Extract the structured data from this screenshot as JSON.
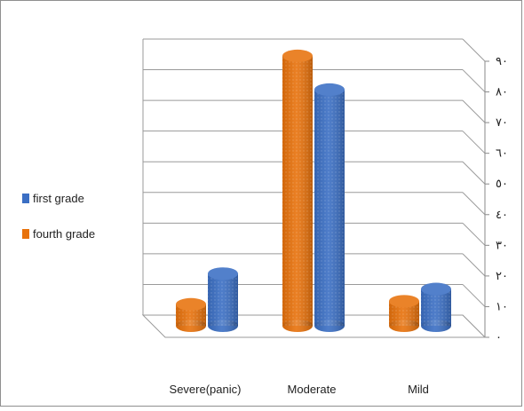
{
  "chart_data": {
    "type": "bar",
    "title": "",
    "xlabel": "",
    "ylabel": "",
    "categories": [
      "Severe(panic)",
      "Moderate",
      "Mild"
    ],
    "series": [
      {
        "name": "first grade",
        "color": "#3b6fc4",
        "values": [
          17,
          77,
          12
        ]
      },
      {
        "name": "fourth grade",
        "color": "#e8720c",
        "values": [
          7,
          88,
          8
        ]
      }
    ],
    "ylim": [
      0,
      90
    ],
    "yticks": [
      "٠",
      "١٠",
      "٢٠",
      "٣٠",
      "٤٠",
      "٥٠",
      "٦٠",
      "٧٠",
      "٨٠",
      "٩٠"
    ],
    "grid": true,
    "legend_position": "left",
    "style": "3d-cylinder"
  },
  "legend": {
    "items": [
      {
        "label": "first grade",
        "color": "#3b6fc4"
      },
      {
        "label": "fourth grade",
        "color": "#e8720c"
      }
    ]
  }
}
